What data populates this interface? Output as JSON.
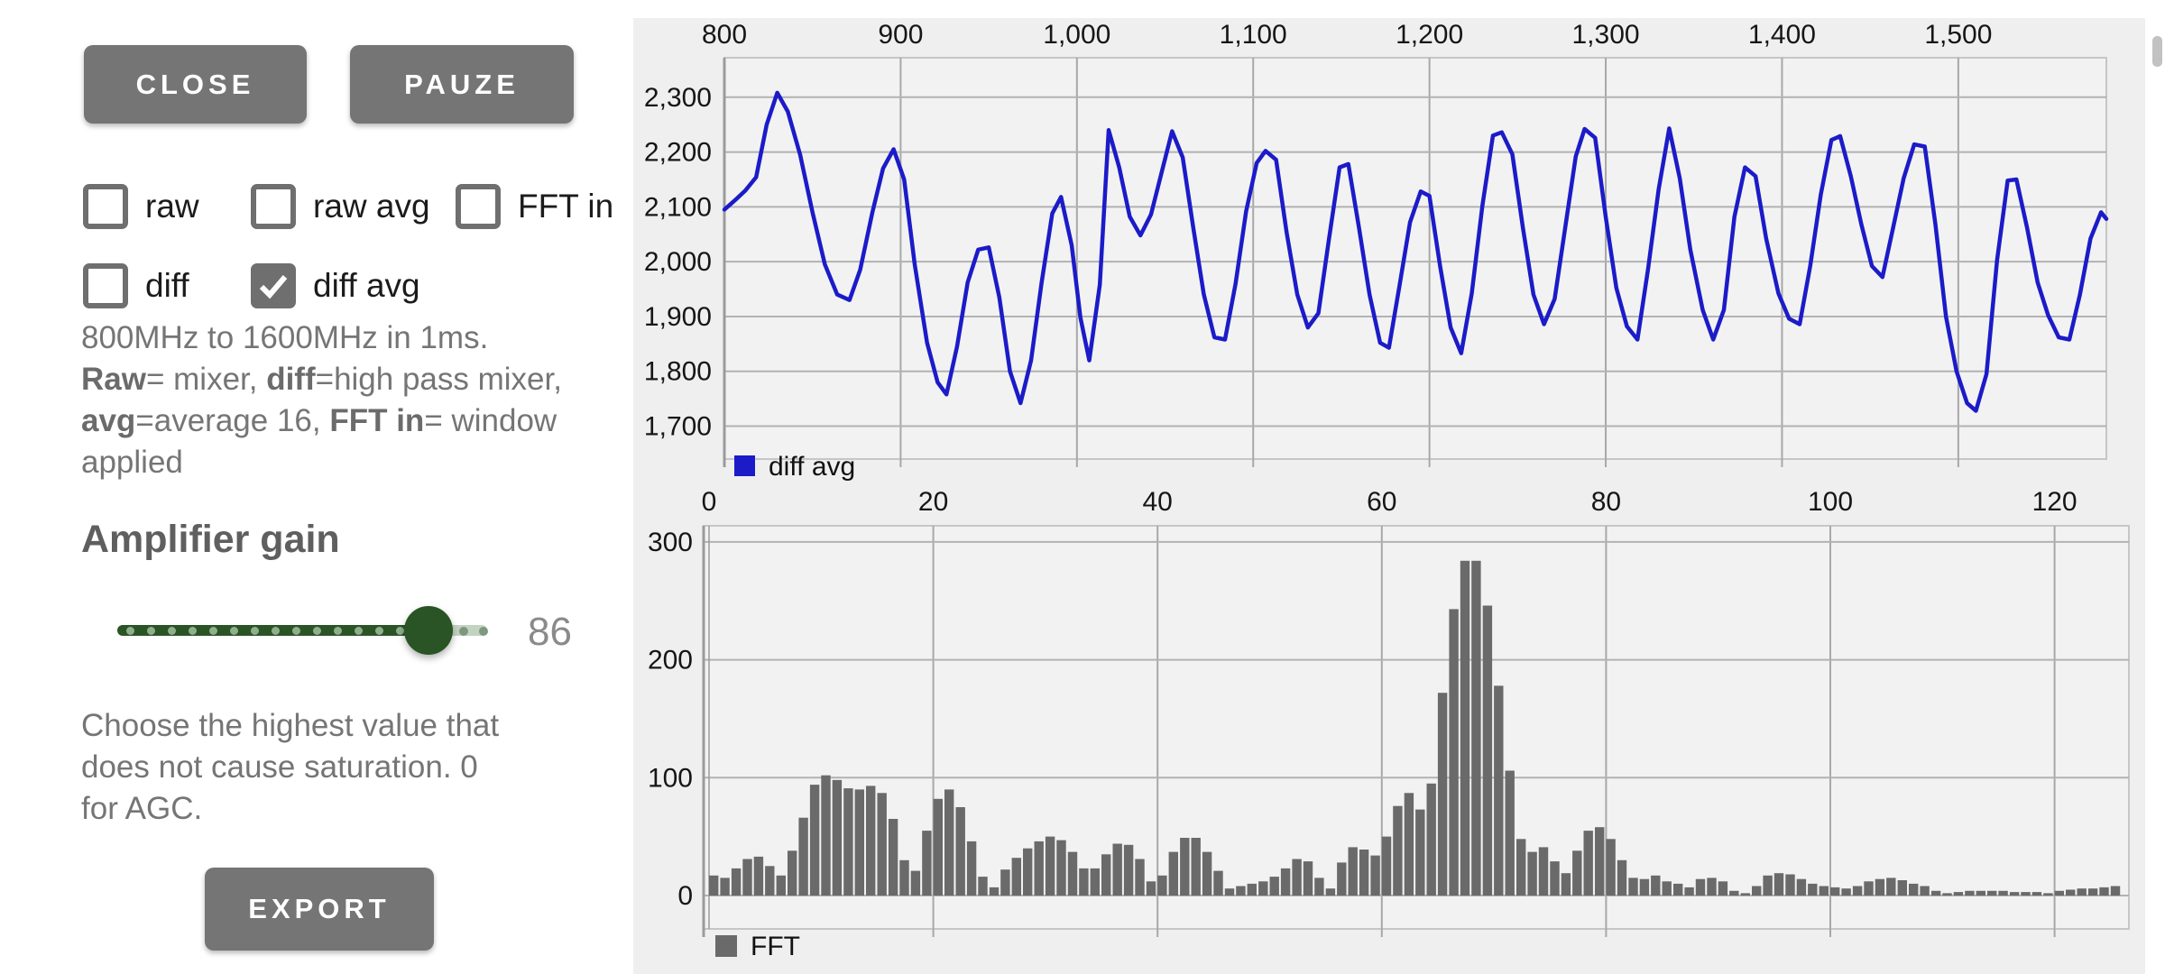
{
  "buttons": {
    "close": "CLOSE",
    "pauze": "PAUZE",
    "export": "EXPORT"
  },
  "checkboxes": [
    {
      "label": "raw",
      "checked": false
    },
    {
      "label": "raw avg",
      "checked": false
    },
    {
      "label": "FFT in",
      "checked": false
    },
    {
      "label": "diff",
      "checked": false
    },
    {
      "label": "diff avg",
      "checked": true
    }
  ],
  "description": {
    "segments": [
      [
        "800MHz to 1600MHz in 1ms.\n",
        0
      ],
      [
        "Raw",
        1
      ],
      [
        "= mixer, ",
        0
      ],
      [
        "diff",
        1
      ],
      [
        "=high pass mixer,\n",
        0
      ],
      [
        "avg",
        1
      ],
      [
        "=average 16, ",
        0
      ],
      [
        "FFT in",
        1
      ],
      [
        "= window\napplied",
        0
      ]
    ]
  },
  "amplifier": {
    "title": "Amplifier gain",
    "value": "86",
    "note": "Choose the highest value that\ndoes not cause saturation. 0\nfor AGC."
  },
  "colors": {
    "line_blue": "#1c1bc8",
    "bar_gray": "#6a6a6a",
    "button_gray": "#757575",
    "slider_green": "#2a5425"
  },
  "chart_data": [
    {
      "type": "line",
      "legend": "diff avg",
      "legend_position": "bottom-left",
      "series_color": "#1c1bc8",
      "xlabel": "",
      "ylabel": "",
      "x_ticks": [
        "800",
        "900",
        "1,000",
        "1,100",
        "1,200",
        "1,300",
        "1,400",
        "1,500"
      ],
      "x_tick_values": [
        800,
        900,
        1000,
        1100,
        1200,
        1300,
        1400,
        1500
      ],
      "y_ticks": [
        "1,700",
        "1,800",
        "1,900",
        "2,000",
        "2,100",
        "2,200",
        "2,300"
      ],
      "y_tick_values": [
        1700,
        1800,
        1900,
        2000,
        2100,
        2200,
        2300
      ],
      "x_range": [
        800,
        1584
      ],
      "y_range": [
        1640,
        2372
      ],
      "grid": true,
      "points": [
        [
          800,
          2095
        ],
        [
          806,
          2112
        ],
        [
          812,
          2130
        ],
        [
          818,
          2154
        ],
        [
          824,
          2250
        ],
        [
          830,
          2308
        ],
        [
          836,
          2274
        ],
        [
          843,
          2195
        ],
        [
          850,
          2090
        ],
        [
          857,
          1995
        ],
        [
          864,
          1940
        ],
        [
          871,
          1930
        ],
        [
          877,
          1985
        ],
        [
          884,
          2090
        ],
        [
          890,
          2170
        ],
        [
          896,
          2205
        ],
        [
          902,
          2150
        ],
        [
          908,
          1995
        ],
        [
          915,
          1852
        ],
        [
          921,
          1780
        ],
        [
          926,
          1758
        ],
        [
          932,
          1845
        ],
        [
          938,
          1962
        ],
        [
          944,
          2022
        ],
        [
          950,
          2026
        ],
        [
          956,
          1935
        ],
        [
          962,
          1800
        ],
        [
          968,
          1742
        ],
        [
          974,
          1820
        ],
        [
          980,
          1962
        ],
        [
          986,
          2088
        ],
        [
          991,
          2118
        ],
        [
          997,
          2030
        ],
        [
          1002,
          1898
        ],
        [
          1007,
          1820
        ],
        [
          1013,
          1958
        ],
        [
          1018,
          2240
        ],
        [
          1024,
          2172
        ],
        [
          1030,
          2082
        ],
        [
          1036,
          2048
        ],
        [
          1042,
          2086
        ],
        [
          1048,
          2162
        ],
        [
          1054,
          2238
        ],
        [
          1060,
          2190
        ],
        [
          1066,
          2062
        ],
        [
          1072,
          1940
        ],
        [
          1078,
          1862
        ],
        [
          1084,
          1858
        ],
        [
          1090,
          1960
        ],
        [
          1096,
          2092
        ],
        [
          1102,
          2180
        ],
        [
          1107,
          2202
        ],
        [
          1113,
          2186
        ],
        [
          1119,
          2052
        ],
        [
          1125,
          1940
        ],
        [
          1131,
          1880
        ],
        [
          1137,
          1906
        ],
        [
          1143,
          2042
        ],
        [
          1149,
          2172
        ],
        [
          1154,
          2178
        ],
        [
          1160,
          2062
        ],
        [
          1166,
          1940
        ],
        [
          1172,
          1852
        ],
        [
          1177,
          1843
        ],
        [
          1183,
          1956
        ],
        [
          1189,
          2072
        ],
        [
          1195,
          2128
        ],
        [
          1200,
          2120
        ],
        [
          1206,
          1992
        ],
        [
          1212,
          1880
        ],
        [
          1218,
          1833
        ],
        [
          1224,
          1942
        ],
        [
          1230,
          2102
        ],
        [
          1236,
          2230
        ],
        [
          1241,
          2236
        ],
        [
          1247,
          2196
        ],
        [
          1253,
          2062
        ],
        [
          1259,
          1940
        ],
        [
          1265,
          1886
        ],
        [
          1271,
          1932
        ],
        [
          1277,
          2062
        ],
        [
          1283,
          2192
        ],
        [
          1288,
          2242
        ],
        [
          1294,
          2226
        ],
        [
          1300,
          2082
        ],
        [
          1306,
          1952
        ],
        [
          1312,
          1882
        ],
        [
          1318,
          1858
        ],
        [
          1324,
          1986
        ],
        [
          1330,
          2132
        ],
        [
          1336,
          2243
        ],
        [
          1342,
          2152
        ],
        [
          1348,
          2022
        ],
        [
          1355,
          1912
        ],
        [
          1361,
          1858
        ],
        [
          1367,
          1912
        ],
        [
          1373,
          2082
        ],
        [
          1379,
          2172
        ],
        [
          1385,
          2156
        ],
        [
          1391,
          2042
        ],
        [
          1398,
          1942
        ],
        [
          1404,
          1896
        ],
        [
          1410,
          1886
        ],
        [
          1416,
          1992
        ],
        [
          1422,
          2122
        ],
        [
          1428,
          2222
        ],
        [
          1433,
          2229
        ],
        [
          1439,
          2156
        ],
        [
          1445,
          2068
        ],
        [
          1451,
          1992
        ],
        [
          1457,
          1972
        ],
        [
          1463,
          2062
        ],
        [
          1469,
          2152
        ],
        [
          1475,
          2214
        ],
        [
          1481,
          2210
        ],
        [
          1487,
          2068
        ],
        [
          1493,
          1900
        ],
        [
          1499,
          1800
        ],
        [
          1505,
          1742
        ],
        [
          1510,
          1728
        ],
        [
          1516,
          1795
        ],
        [
          1522,
          2002
        ],
        [
          1528,
          2148
        ],
        [
          1533,
          2150
        ],
        [
          1539,
          2062
        ],
        [
          1545,
          1962
        ],
        [
          1551,
          1902
        ],
        [
          1557,
          1862
        ],
        [
          1563,
          1858
        ],
        [
          1569,
          1940
        ],
        [
          1575,
          2042
        ],
        [
          1581,
          2090
        ],
        [
          1584,
          2078
        ]
      ]
    },
    {
      "type": "bar",
      "legend": "FFT",
      "legend_position": "bottom-left",
      "series_color": "#6a6a6a",
      "xlabel": "",
      "ylabel": "",
      "x_ticks": [
        "0",
        "20",
        "40",
        "60",
        "80",
        "100",
        "120"
      ],
      "x_tick_values": [
        0,
        20,
        40,
        60,
        80,
        100,
        120
      ],
      "y_ticks": [
        "0",
        "100",
        "200",
        "300"
      ],
      "y_tick_values": [
        0,
        100,
        200,
        300
      ],
      "x_range": [
        0,
        127
      ],
      "y_range": [
        -28,
        314
      ],
      "grid": true,
      "values": [
        17,
        15,
        23,
        31,
        33,
        25,
        17,
        38,
        66,
        94,
        102,
        98,
        91,
        90,
        93,
        87,
        65,
        30,
        21,
        55,
        82,
        90,
        75,
        46,
        16,
        7,
        22,
        32,
        40,
        46,
        50,
        47,
        37,
        23,
        23,
        35,
        44,
        43,
        31,
        12,
        17,
        37,
        49,
        49,
        37,
        21,
        6,
        8,
        10,
        12,
        16,
        23,
        31,
        29,
        15,
        6,
        28,
        41,
        39,
        34,
        50,
        76,
        87,
        73,
        95,
        172,
        243,
        284,
        284,
        246,
        178,
        106,
        48,
        37,
        41,
        29,
        19,
        38,
        55,
        58,
        48,
        30,
        15,
        14,
        17,
        12,
        10,
        7,
        14,
        15,
        12,
        4,
        2,
        8,
        17,
        19,
        18,
        14,
        10,
        8,
        7,
        6,
        8,
        12,
        14,
        15,
        13,
        10,
        8,
        4,
        2,
        3,
        4,
        4,
        4,
        4,
        3,
        3,
        3,
        2,
        4,
        5,
        6,
        6,
        7,
        8
      ]
    }
  ]
}
